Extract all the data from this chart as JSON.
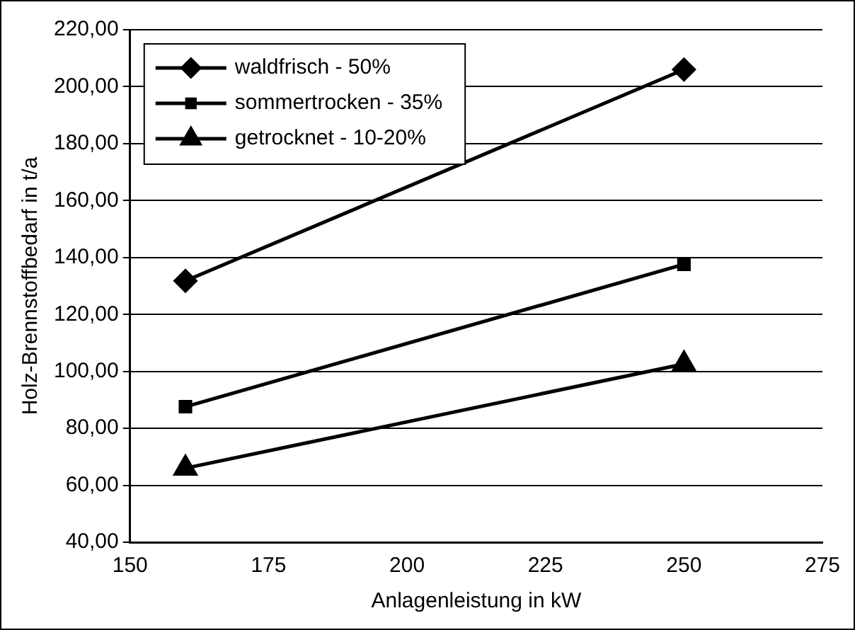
{
  "chart_data": {
    "type": "line",
    "xlabel": "Anlagenleistung in kW",
    "ylabel": "Holz-Brennstoffbedarf in t/a",
    "x": [
      160,
      250
    ],
    "series": [
      {
        "name": "waldfrisch - 50%",
        "color": "#000000",
        "marker": "diamond",
        "values": [
          131.8,
          206
        ]
      },
      {
        "name": "sommertrocken - 35%",
        "color": "#000000",
        "marker": "square",
        "values": [
          87.6,
          137.6
        ]
      },
      {
        "name": "getrocknet - 10-20%",
        "color": "#000000",
        "marker": "triangle",
        "values": [
          66,
          102.6
        ]
      }
    ],
    "xlim": [
      150,
      275
    ],
    "xticks": [
      150,
      175,
      200,
      225,
      250,
      275
    ],
    "ylim": [
      40,
      220
    ],
    "yticks": [
      {
        "value": 40,
        "label": "40,00"
      },
      {
        "value": 60,
        "label": "60,00"
      },
      {
        "value": 80,
        "label": "80,00"
      },
      {
        "value": 100,
        "label": "100,00"
      },
      {
        "value": 120,
        "label": "120,00"
      },
      {
        "value": 140,
        "label": "140,00"
      },
      {
        "value": 160,
        "label": "160,00"
      },
      {
        "value": 180,
        "label": "180,00"
      },
      {
        "value": 200,
        "label": "200,00"
      },
      {
        "value": 220,
        "label": "220,00"
      }
    ],
    "grid": "y",
    "legend": "top left",
    "line_style": "solid"
  }
}
